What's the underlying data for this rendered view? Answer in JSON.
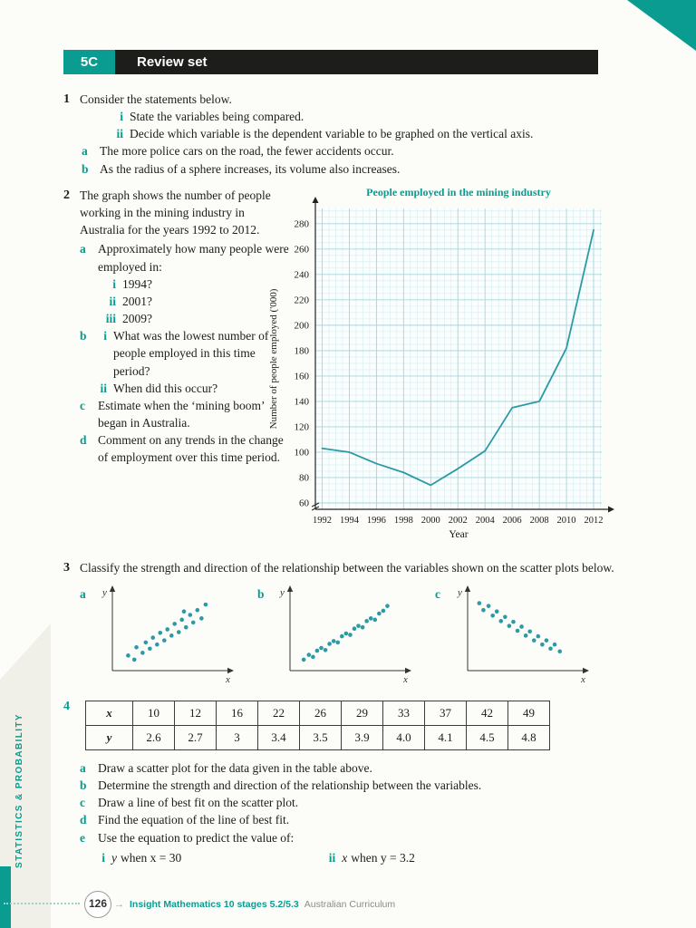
{
  "colors": {
    "accent": "#0a9c90",
    "chart_line": "#2b9aa5",
    "grid_minor": "#d4ecee",
    "grid_major": "#a6d7da",
    "bar": "#1d1d1b"
  },
  "header": {
    "code": "5C",
    "title": "Review set"
  },
  "sidebar": {
    "label": "STATISTICS & PROBABILITY"
  },
  "questions": {
    "q1": {
      "number": "1",
      "intro": "Consider the statements below.",
      "romans": [
        {
          "label": "i",
          "text": "State the variables being compared."
        },
        {
          "label": "ii",
          "text": "Decide which variable is the dependent variable to be graphed on the vertical axis."
        }
      ],
      "parts": [
        {
          "label": "a",
          "text": "The more police cars on the road, the fewer accidents occur."
        },
        {
          "label": "b",
          "text": "As the radius of a sphere increases, its volume also increases."
        }
      ]
    },
    "q2": {
      "number": "2",
      "intro": "The graph shows the number of people working in the mining industry in Australia for the years 1992 to 2012.",
      "part_a_label": "a",
      "part_a_text": "Approximately how many people were employed in:",
      "part_a_items": [
        {
          "label": "i",
          "text": "1994?"
        },
        {
          "label": "ii",
          "text": "2001?"
        },
        {
          "label": "iii",
          "text": "2009?"
        }
      ],
      "part_b_label": "b",
      "part_b_items": [
        {
          "label": "i",
          "text": "What was the lowest number of people employed in this time period?"
        },
        {
          "label": "ii",
          "text": "When did this occur?"
        }
      ],
      "part_c_label": "c",
      "part_c_text": "Estimate when the ‘mining boom’ began in Australia.",
      "part_d_label": "d",
      "part_d_text": "Comment on any trends in the change of employment over this time period."
    },
    "q3": {
      "number": "3",
      "intro": "Classify the strength and direction of the relationship between the variables shown on the scatter plots below.",
      "plot_labels": [
        "a",
        "b",
        "c"
      ]
    },
    "q4": {
      "number": "4",
      "table": {
        "x_label": "x",
        "y_label": "y",
        "x": [
          "10",
          "12",
          "16",
          "22",
          "26",
          "29",
          "33",
          "37",
          "42",
          "49"
        ],
        "y": [
          "2.6",
          "2.7",
          "3",
          "3.4",
          "3.5",
          "3.9",
          "4.0",
          "4.1",
          "4.5",
          "4.8"
        ]
      },
      "parts": [
        {
          "label": "a",
          "text": "Draw a scatter plot for the data given in the table above."
        },
        {
          "label": "b",
          "text": "Determine the strength and direction of the relationship between the variables."
        },
        {
          "label": "c",
          "text": "Draw a line of best fit on the scatter plot."
        },
        {
          "label": "d",
          "text": "Find the equation of the line of best fit."
        },
        {
          "label": "e",
          "text": "Use the equation to predict the value of:"
        }
      ],
      "predict": [
        {
          "label": "i",
          "lhs": "y",
          "text": "when x = 30"
        },
        {
          "label": "ii",
          "lhs": "x",
          "text": "when y = 3.2"
        }
      ]
    }
  },
  "footer": {
    "page": "126",
    "series": "Insight Mathematics 10 stages 5.2/5.3",
    "curriculum": "Australian Curriculum"
  },
  "chart_data": [
    {
      "type": "line",
      "title": "People employed in the mining industry",
      "xlabel": "Year",
      "ylabel": "Number of people employed ('000)",
      "x": [
        1992,
        1994,
        1996,
        1998,
        2000,
        2002,
        2004,
        2006,
        2008,
        2010,
        2012
      ],
      "values": [
        103,
        100,
        91,
        84,
        74,
        87,
        101,
        135,
        140,
        182,
        275
      ],
      "xlim": [
        1991.5,
        2012.6
      ],
      "ylim": [
        55,
        292
      ],
      "yticks": [
        60,
        80,
        100,
        120,
        140,
        160,
        180,
        200,
        220,
        240,
        260,
        280
      ],
      "xticks": [
        1992,
        1994,
        1996,
        1998,
        2000,
        2002,
        2004,
        2006,
        2008,
        2010,
        2012
      ],
      "grid": "fine graph paper",
      "legend": "none"
    },
    {
      "type": "scatter",
      "label": "a",
      "xlabel": "x",
      "ylabel": "y",
      "trend": "moderate positive",
      "points": [
        [
          0.1,
          0.14
        ],
        [
          0.16,
          0.08
        ],
        [
          0.18,
          0.26
        ],
        [
          0.24,
          0.18
        ],
        [
          0.27,
          0.33
        ],
        [
          0.31,
          0.24
        ],
        [
          0.34,
          0.4
        ],
        [
          0.38,
          0.3
        ],
        [
          0.41,
          0.47
        ],
        [
          0.45,
          0.36
        ],
        [
          0.48,
          0.52
        ],
        [
          0.52,
          0.43
        ],
        [
          0.55,
          0.6
        ],
        [
          0.59,
          0.48
        ],
        [
          0.62,
          0.66
        ],
        [
          0.64,
          0.78
        ],
        [
          0.66,
          0.55
        ],
        [
          0.7,
          0.73
        ],
        [
          0.73,
          0.62
        ],
        [
          0.77,
          0.8
        ],
        [
          0.81,
          0.68
        ],
        [
          0.85,
          0.88
        ]
      ]
    },
    {
      "type": "scatter",
      "label": "b",
      "xlabel": "x",
      "ylabel": "y",
      "trend": "strong positive",
      "points": [
        [
          0.08,
          0.08
        ],
        [
          0.13,
          0.15
        ],
        [
          0.17,
          0.12
        ],
        [
          0.21,
          0.21
        ],
        [
          0.25,
          0.25
        ],
        [
          0.29,
          0.22
        ],
        [
          0.33,
          0.31
        ],
        [
          0.37,
          0.35
        ],
        [
          0.41,
          0.33
        ],
        [
          0.45,
          0.42
        ],
        [
          0.49,
          0.46
        ],
        [
          0.53,
          0.44
        ],
        [
          0.57,
          0.53
        ],
        [
          0.61,
          0.57
        ],
        [
          0.65,
          0.55
        ],
        [
          0.69,
          0.64
        ],
        [
          0.73,
          0.68
        ],
        [
          0.77,
          0.66
        ],
        [
          0.81,
          0.75
        ],
        [
          0.85,
          0.79
        ],
        [
          0.89,
          0.86
        ]
      ]
    },
    {
      "type": "scatter",
      "label": "c",
      "xlabel": "x",
      "ylabel": "y",
      "trend": "negative",
      "points": [
        [
          0.06,
          0.9
        ],
        [
          0.1,
          0.8
        ],
        [
          0.15,
          0.86
        ],
        [
          0.19,
          0.72
        ],
        [
          0.23,
          0.78
        ],
        [
          0.27,
          0.64
        ],
        [
          0.31,
          0.7
        ],
        [
          0.35,
          0.57
        ],
        [
          0.39,
          0.63
        ],
        [
          0.43,
          0.5
        ],
        [
          0.47,
          0.56
        ],
        [
          0.51,
          0.43
        ],
        [
          0.55,
          0.49
        ],
        [
          0.59,
          0.36
        ],
        [
          0.63,
          0.42
        ],
        [
          0.67,
          0.3
        ],
        [
          0.71,
          0.36
        ],
        [
          0.75,
          0.24
        ],
        [
          0.79,
          0.3
        ],
        [
          0.84,
          0.2
        ]
      ]
    }
  ]
}
